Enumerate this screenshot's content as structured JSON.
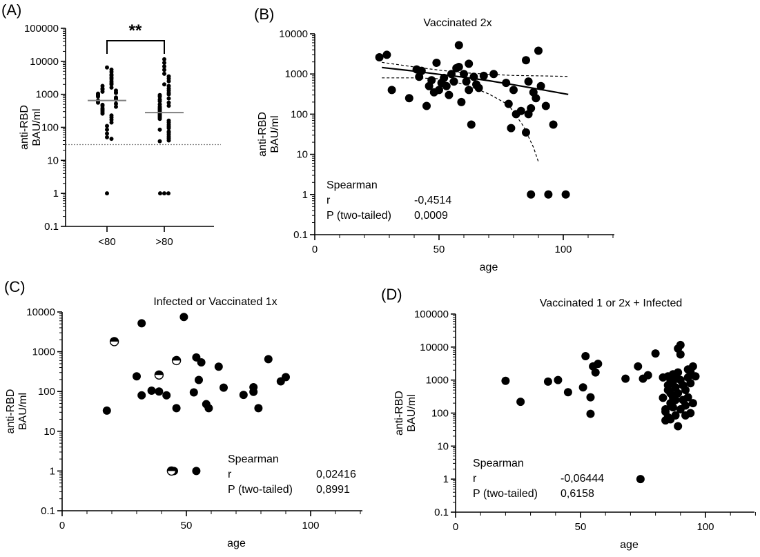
{
  "figure_labels": [
    "(A)",
    "(B)",
    "(C)",
    "(D)"
  ],
  "chart_data": [
    {
      "panel": "(A)",
      "type": "scatter",
      "title": "",
      "xlabel": "",
      "ylabel": [
        "anti-RBD",
        "BAU/ml"
      ],
      "yscale": "log",
      "ylim": [
        0.1,
        100000
      ],
      "yticks": [
        "0.1",
        "1",
        "10",
        "100",
        "1000",
        "10000",
        "100000"
      ],
      "categories": [
        "<80",
        ">80"
      ],
      "median_lines": [
        650,
        280
      ],
      "threshold_line": 30,
      "significance": "**",
      "series": [
        {
          "category": "<80",
          "values": [
            6500,
            5600,
            4800,
            4000,
            3700,
            3200,
            2900,
            2500,
            2200,
            2000,
            1800,
            1600,
            1500,
            1400,
            1300,
            1200,
            1150,
            1100,
            1050,
            1000,
            950,
            900,
            850,
            800,
            760,
            720,
            680,
            650,
            620,
            600,
            560,
            520,
            480,
            450,
            420,
            380,
            350,
            320,
            290,
            260,
            230,
            200,
            170,
            140,
            110,
            85,
            65,
            50,
            45,
            1
          ]
        },
        {
          "category": ">80",
          "values": [
            11500,
            9000,
            7000,
            5500,
            4200,
            3500,
            3000,
            2500,
            2000,
            1800,
            1500,
            1300,
            1100,
            1000,
            950,
            850,
            750,
            700,
            620,
            560,
            500,
            450,
            420,
            380,
            350,
            320,
            290,
            260,
            240,
            220,
            200,
            180,
            160,
            140,
            120,
            105,
            95,
            85,
            75,
            68,
            60,
            52,
            46,
            40,
            38,
            1,
            1,
            1
          ]
        }
      ]
    },
    {
      "panel": "(B)",
      "type": "scatter",
      "title": "Vaccinated 2x",
      "xlabel": "age",
      "ylabel": [
        "anti-RBD",
        "BAU/ml"
      ],
      "xlim": [
        0,
        120
      ],
      "xticks": [
        "0",
        "50",
        "100"
      ],
      "yscale": "log",
      "ylim": [
        0.1,
        10000
      ],
      "yticks": [
        "0.1",
        "1",
        "10",
        "100",
        "1000",
        "10000"
      ],
      "points": [
        [
          26,
          2600
        ],
        [
          29,
          3000
        ],
        [
          31,
          400
        ],
        [
          38,
          250
        ],
        [
          41,
          1300
        ],
        [
          42,
          850
        ],
        [
          43,
          1200
        ],
        [
          45,
          160
        ],
        [
          46,
          500
        ],
        [
          47,
          700
        ],
        [
          48,
          350
        ],
        [
          49,
          1900
        ],
        [
          50,
          400
        ],
        [
          51,
          600
        ],
        [
          52,
          800
        ],
        [
          53,
          500
        ],
        [
          54,
          300
        ],
        [
          55,
          1000
        ],
        [
          56,
          650
        ],
        [
          57,
          1400
        ],
        [
          58,
          5200
        ],
        [
          58,
          1500
        ],
        [
          59,
          200
        ],
        [
          60,
          1000
        ],
        [
          61,
          650
        ],
        [
          62,
          1800
        ],
        [
          62,
          400
        ],
        [
          63,
          55
        ],
        [
          64,
          850
        ],
        [
          65,
          550
        ],
        [
          66,
          450
        ],
        [
          68,
          900
        ],
        [
          72,
          1000
        ],
        [
          77,
          600
        ],
        [
          78,
          180
        ],
        [
          79,
          45
        ],
        [
          80,
          400
        ],
        [
          81,
          100
        ],
        [
          83,
          120
        ],
        [
          85,
          35
        ],
        [
          85,
          2200
        ],
        [
          86,
          100
        ],
        [
          86,
          650
        ],
        [
          87,
          140
        ],
        [
          88,
          350
        ],
        [
          89,
          250
        ],
        [
          90,
          3800
        ],
        [
          91,
          500
        ],
        [
          93,
          160
        ],
        [
          96,
          55
        ],
        [
          87,
          1
        ],
        [
          94,
          1
        ],
        [
          101,
          1
        ]
      ],
      "fit_line": [
        [
          27,
          1450
        ],
        [
          40,
          1180
        ],
        [
          50,
          980
        ],
        [
          60,
          830
        ],
        [
          70,
          680
        ],
        [
          80,
          540
        ],
        [
          90,
          420
        ],
        [
          102,
          310
        ]
      ],
      "ci_upper": [
        [
          27,
          1950
        ],
        [
          40,
          1500
        ],
        [
          50,
          1250
        ],
        [
          60,
          1080
        ],
        [
          70,
          980
        ],
        [
          80,
          920
        ],
        [
          90,
          900
        ],
        [
          102,
          870
        ]
      ],
      "ci_lower": [
        [
          27,
          800
        ],
        [
          40,
          800
        ],
        [
          50,
          760
        ],
        [
          60,
          560
        ],
        [
          70,
          320
        ],
        [
          78,
          170
        ],
        [
          84,
          50
        ],
        [
          88,
          15
        ],
        [
          90,
          6.5
        ]
      ],
      "stats": {
        "label": "Spearman",
        "r_label": "r",
        "r": "-0,4514",
        "p_label": "P (two-tailed)",
        "p": "0,0009"
      }
    },
    {
      "panel": "(C)",
      "type": "scatter",
      "title": "Infected or Vaccinated 1x",
      "xlabel": "age",
      "ylabel": [
        "anti-RBD",
        "BAU/ml"
      ],
      "xlim": [
        0,
        120
      ],
      "xticks": [
        "0",
        "50",
        "100"
      ],
      "yscale": "log",
      "ylim": [
        0.1,
        10000
      ],
      "yticks": [
        "0.1",
        "1",
        "10",
        "100",
        "1000",
        "10000"
      ],
      "points": [
        [
          18,
          33
        ],
        [
          30,
          240
        ],
        [
          32,
          5200
        ],
        [
          32,
          80
        ],
        [
          36,
          105
        ],
        [
          39,
          100
        ],
        [
          42,
          80
        ],
        [
          46,
          38
        ],
        [
          49,
          7500
        ],
        [
          53,
          95
        ],
        [
          54,
          720
        ],
        [
          55,
          195
        ],
        [
          56,
          540
        ],
        [
          58,
          48
        ],
        [
          59,
          38
        ],
        [
          63,
          420
        ],
        [
          65,
          125
        ],
        [
          73,
          82
        ],
        [
          77,
          128
        ],
        [
          77,
          98
        ],
        [
          79,
          38
        ],
        [
          83,
          650
        ],
        [
          88,
          180
        ],
        [
          90,
          230
        ],
        [
          45,
          1
        ],
        [
          54,
          1
        ]
      ],
      "half_filled_points": [
        [
          21,
          1800
        ],
        [
          39,
          260
        ],
        [
          46,
          600
        ],
        [
          44,
          1
        ]
      ],
      "stats": {
        "label": "Spearman",
        "r_label": "r",
        "r": "0,02416",
        "p_label": "P (two-tailed)",
        "p": "0,8991"
      }
    },
    {
      "panel": "(D)",
      "type": "scatter",
      "title": "Vaccinated 1 or 2x + Infected",
      "xlabel": "age",
      "ylabel": [
        "anti-RBD",
        "BAU/ml"
      ],
      "xlim": [
        0,
        120
      ],
      "xticks": [
        "0",
        "50",
        "100"
      ],
      "yscale": "log",
      "ylim": [
        0.1,
        100000
      ],
      "yticks": [
        "0.1",
        "1",
        "10",
        "100",
        "1000",
        "10000",
        "100000"
      ],
      "points": [
        [
          20,
          950
        ],
        [
          26,
          220
        ],
        [
          37,
          900
        ],
        [
          41,
          1000
        ],
        [
          45,
          430
        ],
        [
          51,
          600
        ],
        [
          52,
          5300
        ],
        [
          54,
          300
        ],
        [
          54,
          95
        ],
        [
          55,
          2600
        ],
        [
          56,
          1700
        ],
        [
          57,
          3100
        ],
        [
          68,
          1100
        ],
        [
          73,
          2600
        ],
        [
          75,
          1100
        ],
        [
          77,
          1400
        ],
        [
          80,
          6400
        ],
        [
          83,
          1200
        ],
        [
          83,
          290
        ],
        [
          84,
          130
        ],
        [
          84,
          110
        ],
        [
          84,
          60
        ],
        [
          85,
          1300
        ],
        [
          85,
          700
        ],
        [
          85,
          500
        ],
        [
          85,
          75
        ],
        [
          86,
          1000
        ],
        [
          86,
          400
        ],
        [
          86,
          200
        ],
        [
          86,
          65
        ],
        [
          87,
          1500
        ],
        [
          87,
          900
        ],
        [
          87,
          300
        ],
        [
          87,
          150
        ],
        [
          88,
          1200
        ],
        [
          88,
          600
        ],
        [
          88,
          250
        ],
        [
          88,
          85
        ],
        [
          89,
          1700
        ],
        [
          89,
          400
        ],
        [
          89,
          40
        ],
        [
          89,
          9000
        ],
        [
          90,
          11500
        ],
        [
          90,
          6000
        ],
        [
          90,
          1000
        ],
        [
          90,
          130
        ],
        [
          91,
          700
        ],
        [
          91,
          250
        ],
        [
          92,
          500
        ],
        [
          92,
          170
        ],
        [
          92,
          85
        ],
        [
          93,
          2100
        ],
        [
          93,
          1200
        ],
        [
          93,
          300
        ],
        [
          94,
          1800
        ],
        [
          94,
          800
        ],
        [
          94,
          100
        ],
        [
          95,
          2600
        ],
        [
          95,
          200
        ],
        [
          96,
          1300
        ],
        [
          74,
          1
        ]
      ],
      "stats": {
        "label": "Spearman",
        "r_label": "r",
        "r": "-0,06444",
        "p_label": "P (two-tailed)",
        "p": "0,6158"
      }
    }
  ]
}
